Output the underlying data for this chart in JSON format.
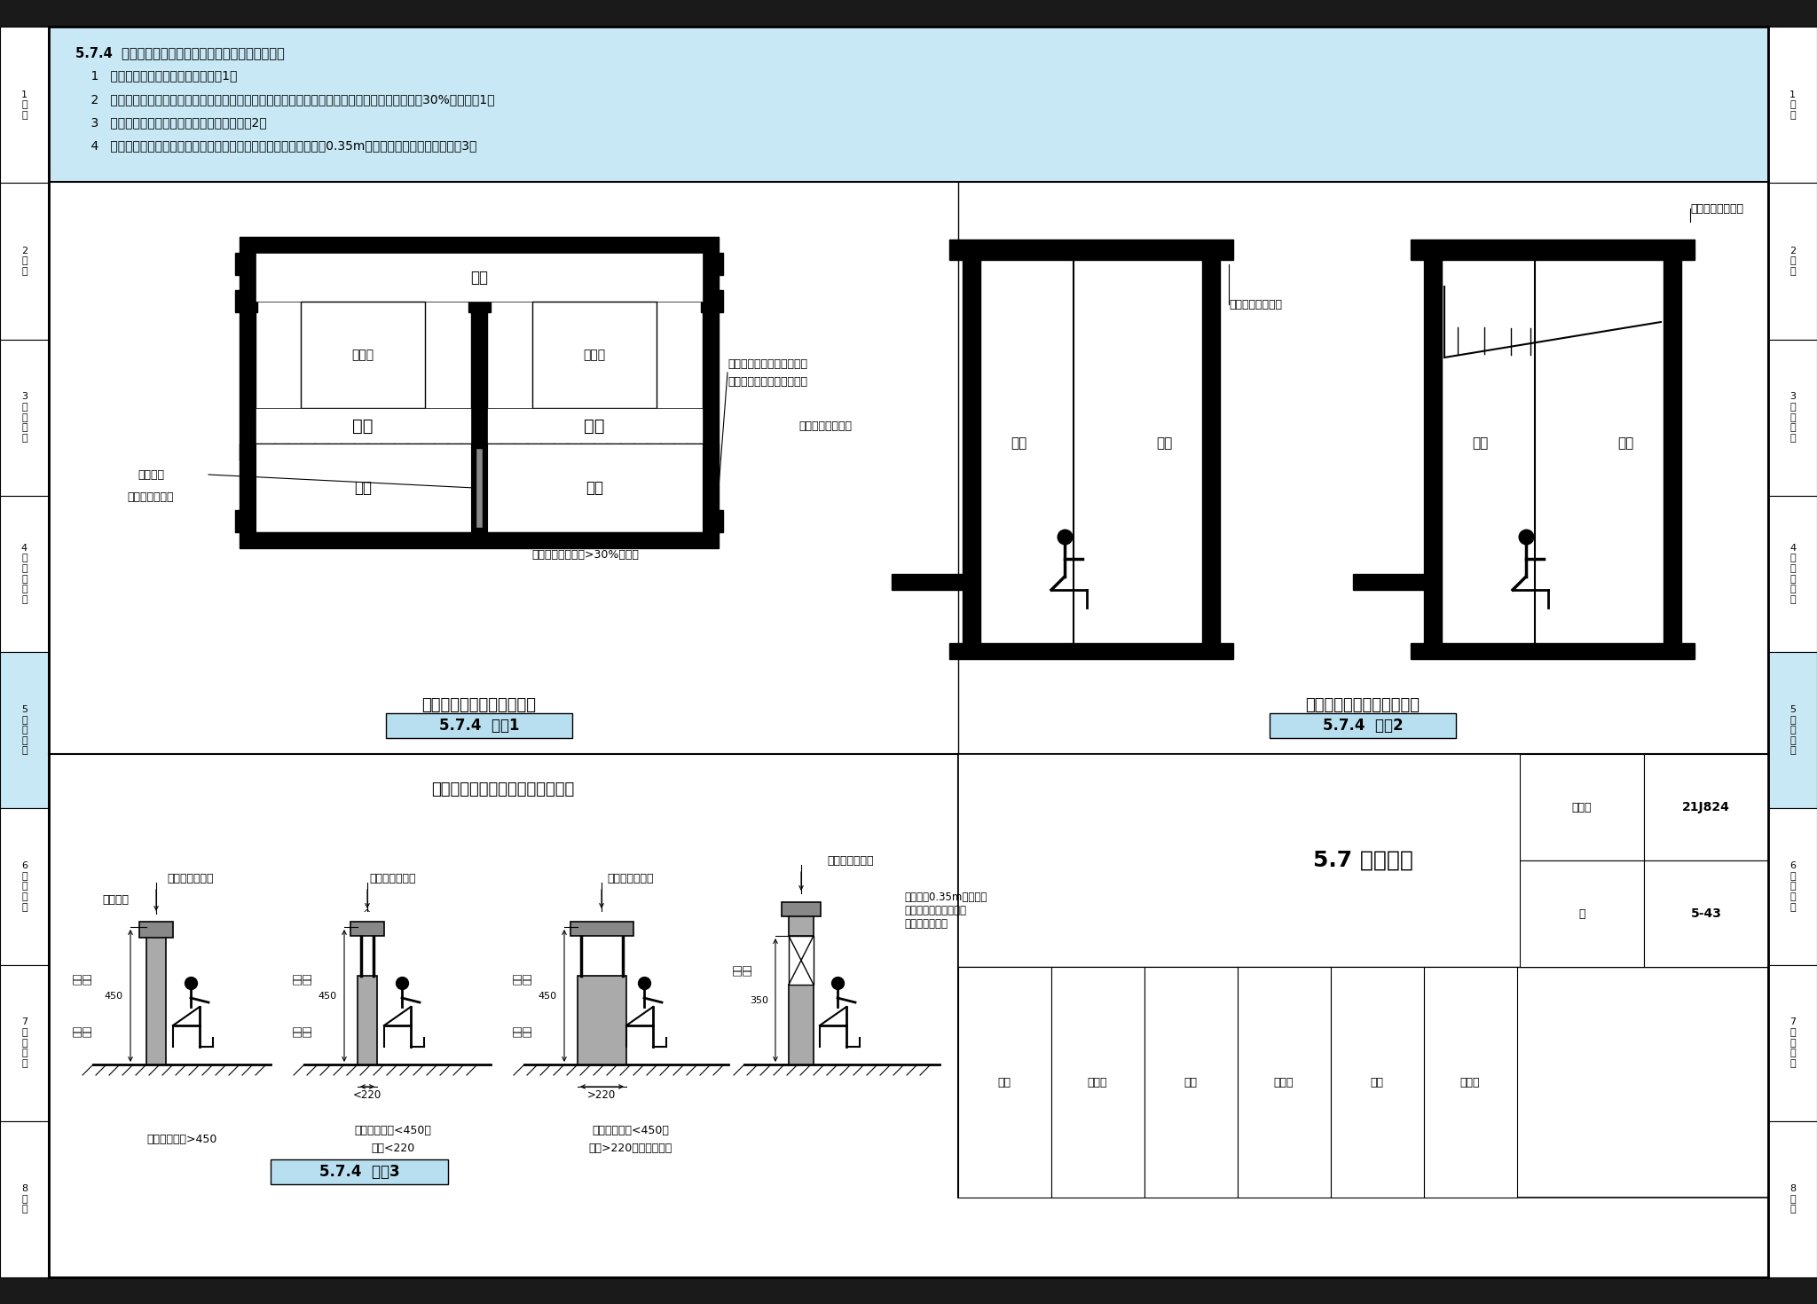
{
  "bg_color": "#ffffff",
  "light_blue": "#b8dff0",
  "header_blue": "#c8e8f5",
  "dark_bar": "#1a1a1a",
  "fig1_label": "5.7.4  图示1",
  "fig2_label": "5.7.4  图示2",
  "fig3_label": "5.7.4  图示3",
  "plan_title": "老年人用房阳台平面示意图",
  "section_title": "老年人用房阳台剖面示意图",
  "fig3_title": "阳台、上人平台防坠落措施示意图",
  "bottom_section": "5.7 建筑细部",
  "page_num": "5-43",
  "drawing_num": "21J824",
  "active_chapter": 5,
  "tab_labels": [
    "1\n总\n则",
    "2\n术\n语",
    "3\n基\n本\n规\n定",
    "4\n基\n地\n与\n场\n地",
    "5\n建\n筑\n设\n计",
    "6\n专\n门\n要\n求",
    "7\n建\n筑\n设\n备",
    "8\n附\n录"
  ],
  "tab_colors": [
    "#ffffff",
    "#ffffff",
    "#ffffff",
    "#ffffff",
    "#c8e8f5",
    "#ffffff",
    "#ffffff",
    "#ffffff"
  ],
  "header_lines": [
    "5.7.4  老年人用房的阳台、上人平台应符合下列规定：",
    "    1   相邻居室的阳台宜相连通。【图示1】",
    "    2   严寒及寒冷地区、多风沙地区的老年人用房阳台宜封闭，其有效通风换气面积不应小于窗面积的30%。【图示1】",
    "    3   阳台、上人平台宜设衣物晾晒装置。【图示2】",
    "    4   开敞式阳台、上人平台的栏杆、栏板应采取防坠落措施，且距地面0.35m高度范围内不宜留空。【图示3】"
  ]
}
